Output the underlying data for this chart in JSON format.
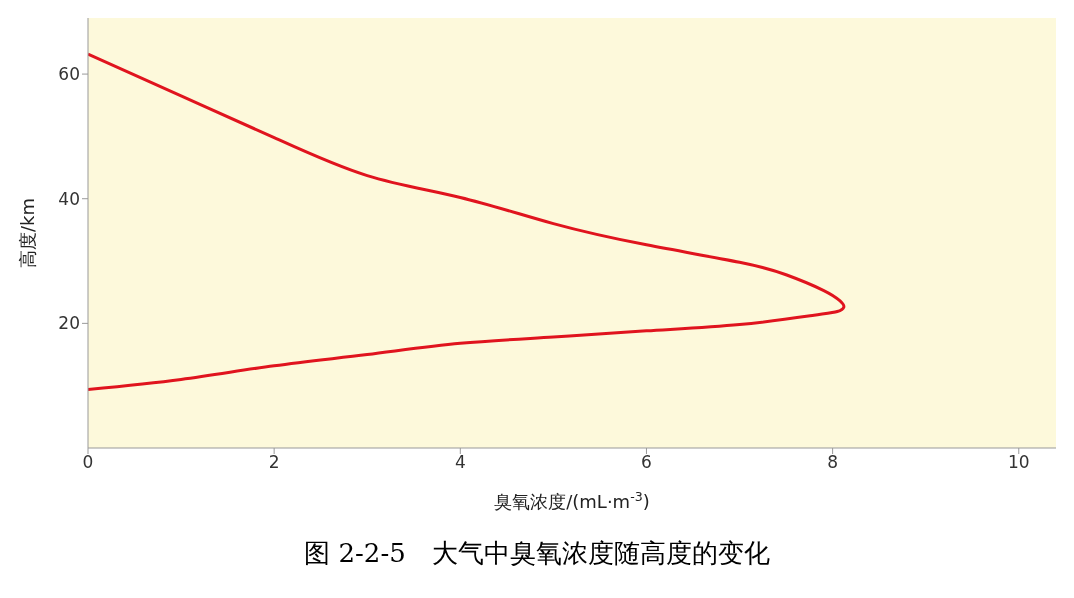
{
  "chart_data": {
    "type": "line",
    "title": "图 2-2-5　大气中臭氧浓度随高度的变化",
    "xlabel": "臭氧浓度/(mL·m$^{-3}$)",
    "ylabel": "高度/km",
    "x": [
      0,
      1,
      2,
      3,
      4,
      5,
      6,
      7,
      7.5,
      7.9,
      8.08,
      8.12,
      8.05,
      7.8,
      7,
      6,
      5,
      4,
      3,
      2,
      1,
      0
    ],
    "series": [
      {
        "color": "#e0141e",
        "values": [
          63.2,
          56.5,
          49.8,
          43.7,
          40.2,
          36,
          32.6,
          29.8,
          27.8,
          25.3,
          23.6,
          22.6,
          21.9,
          21.3,
          19.8,
          18.8,
          17.8,
          16.8,
          15,
          13.2,
          11,
          9.4
        ]
      }
    ],
    "xlim": [
      0,
      10.4
    ],
    "xticks": [
      0,
      2,
      4,
      6,
      8,
      10
    ],
    "ylim": [
      0,
      69
    ],
    "yticks": [
      20,
      40,
      60
    ],
    "grid": false,
    "legend": false,
    "marker": "none",
    "line_style": "solid"
  }
}
